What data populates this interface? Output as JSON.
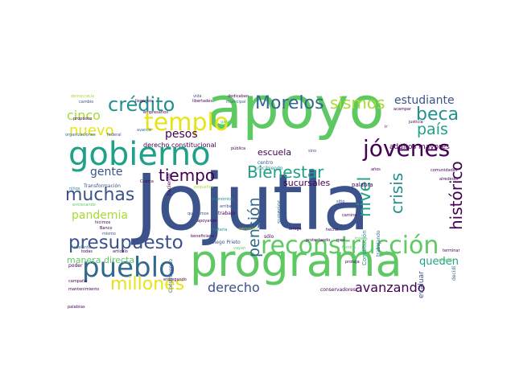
{
  "palette": {
    "navy": "#3b528b",
    "teal": "#21918c",
    "green": "#5ec962",
    "lime": "#a8db34",
    "yellow": "#e6e419",
    "purple": "#440154",
    "blue": "#31688e",
    "turq": "#1fa187"
  },
  "words": {
    "jojutla": "Jojutla",
    "apoyo": "apoyo",
    "programa": "programa",
    "gobierno": "gobierno",
    "reconstruccion": "reconstrucción",
    "pueblo": "pueblo",
    "presupuesto": "presupuesto",
    "jovenes": "jóvenes",
    "templo": "templo",
    "credito": "crédito",
    "morelos": "Morelos",
    "sismos": "sismos",
    "beca": "beca",
    "bienestar": "Bienestar",
    "muchas": "muchas",
    "millones": "millones",
    "avanzando": "avanzando",
    "pension": "pensión",
    "historico": "histórico",
    "crisis": "crisis",
    "nivel": "nivel",
    "pais": "país",
    "estudiante": "estudiante",
    "cinco": "cinco",
    "nuevo": "nuevo",
    "pesos": "pesos",
    "tiempo": "tiempo",
    "gente": "gente",
    "pandemia": "pandemia",
    "derecho": "derecho",
    "quedan": "queden",
    "escuela": "escuela",
    "sucursales": "sucursales",
    "manera_directa": "manera directa",
    "adultos_mayores": "adultos mayores",
    "derecho_constitucional": "derecho constitucional",
    "transformacion": "Transformación",
    "ciudad": "ciudad",
    "trabajo": "trabajo",
    "apoyando": "apoyando",
    "palabra": "palabra",
    "conservadores": "conservadores",
    "evaluar": "evaluar",
    "libertades": "libertades",
    "vida": "vida",
    "cambio": "cambio",
    "proposito": "propósito",
    "avance": "avance",
    "empresarios": "empresarios",
    "organizaciones": "organizaciones",
    "federal": "federal",
    "garantia": "garantía",
    "publica": "pública",
    "centro": "centro",
    "recibiendo": "recibiendo",
    "beneficiario": "beneficiario",
    "diego_prieto": "Diego Prieto",
    "construyendo": "Construyendo",
    "banco": "Banco",
    "mismo": "mismo",
    "articulo": "artículo",
    "todas": "todas",
    "adelante": "adelante",
    "poder": "poder",
    "campana": "campaña",
    "mantenimiento": "mantenimiento",
    "ninos": "niños",
    "hicimos": "hicimos",
    "entregando": "entregando",
    "arriba": "arriba",
    "superior": "superior",
    "amigo": "amigo",
    "protestando": "protestando",
    "camino": "camino",
    "sitio": "sitio",
    "solo": "sólo",
    "alrededor": "alrededor",
    "comunidades": "comunidades",
    "constitucion": "Constitución",
    "trabajando": "trabajando",
    "hecho": "hecho",
    "mes": "mes",
    "traves": "través",
    "proteja": "proteja",
    "justicia": "justicia",
    "acampar": "acampar",
    "materia": "materia",
    "economica": "económica",
    "haciendo": "haciendo",
    "llegamos": "llegamos",
    "dedicaban": "dedicaban",
    "municipal": "municipal",
    "cuarta": "Cuarta",
    "entrenando": "entrenando",
    "queriamos": "queríamos",
    "pequenos": "pequeños",
    "personas": "personas",
    "vayan": "vayan",
    "palabras": "palabras",
    "terminar": "terminar",
    "vivienda": "vivienda",
    "decidi": "decidí",
    "ir": "ir",
    "sino": "sino",
    "anos": "años",
    "familia": "familia",
    "mam": "mamá",
    "saber": "saber",
    "nacer": "nacer",
    "democracia": "democracia",
    "seguir": "seguir",
    "apoyos": "apoyos",
    "informacion": "información",
    "edificio": "edificio",
    "gracias": "gracias",
    "casa": "casa",
    "invertir": "invertir",
    "plaza": "plaza",
    "quiero": "quiero",
    "estoy": "estoy",
    "dolor": "dolor",
    "lucha": "lucha",
    "cargos": "cargos",
    "inmueble": "inmueble",
    "lugar": "lugar",
    "mundo": "mundo",
    "sur": "sur",
    "mas": "más",
    "ver": "ver",
    "cada": "cada",
    "ejemplo": "ejemplo",
    "zona": "zona",
    "iglesia": "iglesia",
    "abril": "abril",
    "bien": "bien",
    "frente": "frente",
    "paso": "paso",
    "cosas": "cosas",
    "luz": "luz"
  }
}
